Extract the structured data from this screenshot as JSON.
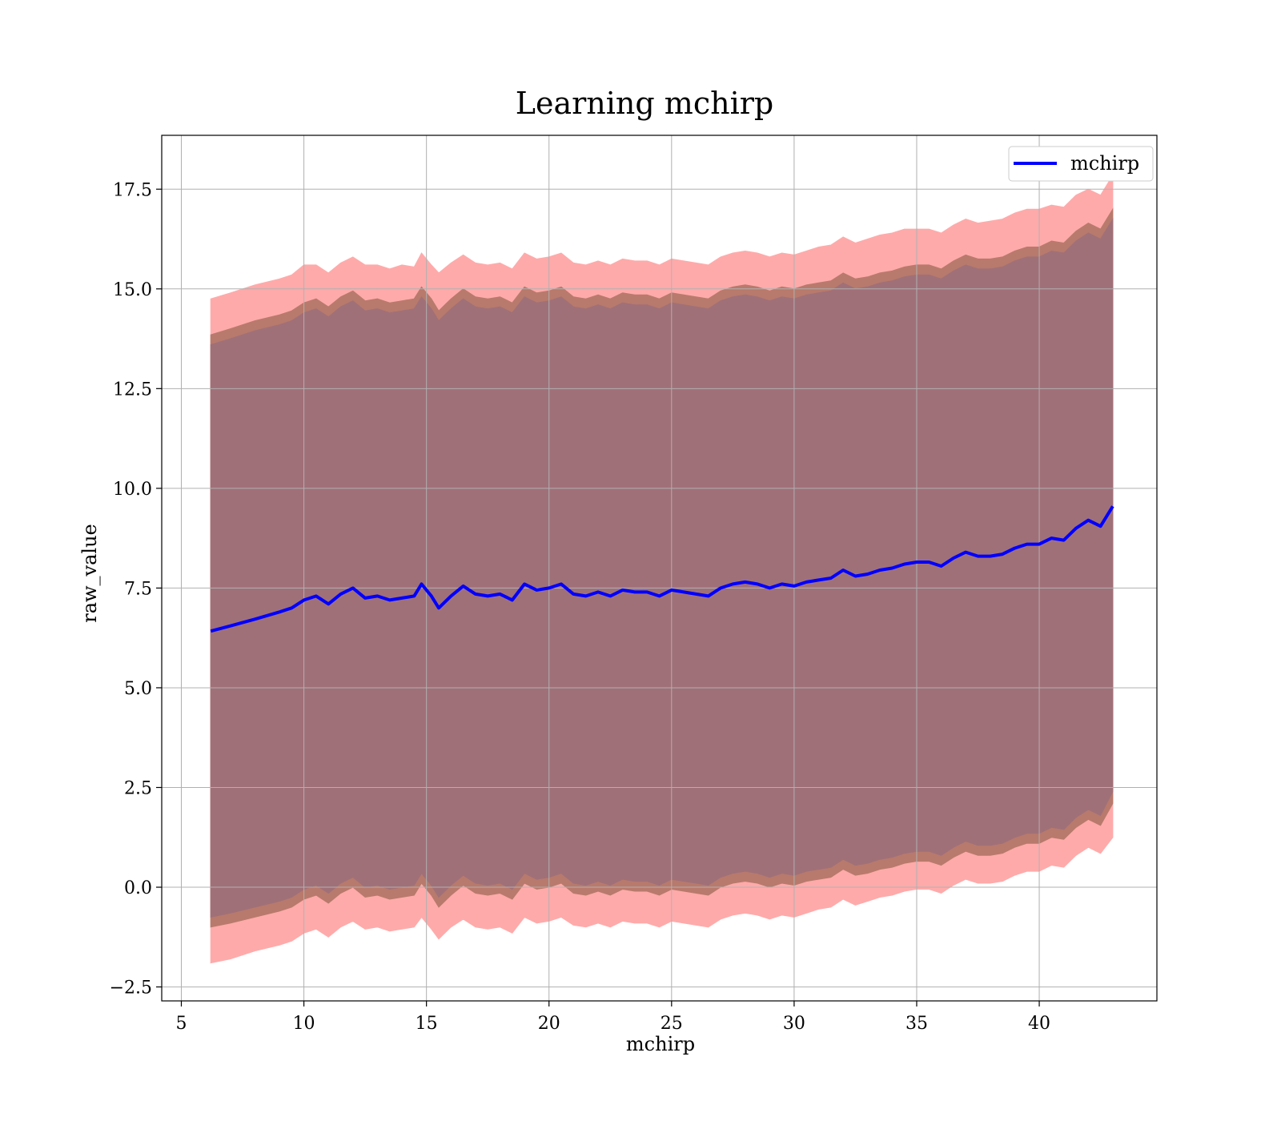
{
  "chart_data": {
    "type": "area",
    "title": "Learning mchirp",
    "xlabel": "mchirp",
    "ylabel": "raw_value",
    "xlim": [
      4.2,
      44.8
    ],
    "ylim": [
      -2.85,
      18.85
    ],
    "xticks": [
      5,
      10,
      15,
      20,
      25,
      30,
      35,
      40
    ],
    "xtick_labels": [
      "5",
      "10",
      "15",
      "20",
      "25",
      "30",
      "35",
      "40"
    ],
    "yticks": [
      -2.5,
      0.0,
      2.5,
      5.0,
      7.5,
      10.0,
      12.5,
      15.0,
      17.5
    ],
    "ytick_labels": [
      "−2.5",
      "0.0",
      "2.5",
      "5.0",
      "7.5",
      "10.0",
      "12.5",
      "15.0",
      "17.5"
    ],
    "grid": true,
    "legend": {
      "position": "top-right",
      "entries": [
        "mchirp"
      ]
    },
    "series": [
      {
        "name": "mchirp",
        "color": "#0000ff",
        "x": [
          6.2,
          7,
          8,
          9,
          9.5,
          10,
          10.5,
          11,
          11.5,
          12,
          12.5,
          13,
          13.5,
          14,
          14.5,
          14.8,
          15.2,
          15.5,
          16,
          16.5,
          17,
          17.5,
          18,
          18.5,
          19,
          19.5,
          20,
          20.5,
          21,
          21.5,
          22,
          22.5,
          23,
          23.5,
          24,
          24.5,
          25,
          25.5,
          26,
          26.5,
          27,
          27.5,
          28,
          28.5,
          29,
          29.5,
          30,
          30.5,
          31,
          31.5,
          32,
          32.5,
          33,
          33.5,
          34,
          34.5,
          35,
          35.5,
          36,
          36.5,
          37,
          37.5,
          38,
          38.5,
          39,
          39.5,
          40,
          40.5,
          41,
          41.5,
          42,
          42.5,
          43
        ],
        "values": [
          6.42,
          6.55,
          6.72,
          6.9,
          7.0,
          7.2,
          7.3,
          7.1,
          7.35,
          7.5,
          7.25,
          7.3,
          7.2,
          7.25,
          7.3,
          7.6,
          7.3,
          7.0,
          7.3,
          7.55,
          7.35,
          7.3,
          7.35,
          7.2,
          7.6,
          7.45,
          7.5,
          7.6,
          7.35,
          7.3,
          7.4,
          7.3,
          7.45,
          7.4,
          7.4,
          7.3,
          7.45,
          7.4,
          7.35,
          7.3,
          7.5,
          7.6,
          7.65,
          7.6,
          7.5,
          7.6,
          7.55,
          7.65,
          7.7,
          7.75,
          7.95,
          7.8,
          7.85,
          7.95,
          8.0,
          8.1,
          8.15,
          8.15,
          8.05,
          8.25,
          8.4,
          8.3,
          8.3,
          8.35,
          8.5,
          8.6,
          8.6,
          8.75,
          8.7,
          9.0,
          9.2,
          9.05,
          9.55
        ]
      }
    ],
    "bands": [
      {
        "color": "#ffaaaa",
        "x": [
          6.2,
          7,
          8,
          9,
          9.5,
          10,
          10.5,
          11,
          11.5,
          12,
          12.5,
          13,
          13.5,
          14,
          14.5,
          14.8,
          15.2,
          15.5,
          16,
          16.5,
          17,
          17.5,
          18,
          18.5,
          19,
          19.5,
          20,
          20.5,
          21,
          21.5,
          22,
          22.5,
          23,
          23.5,
          24,
          24.5,
          25,
          25.5,
          26,
          26.5,
          27,
          27.5,
          28,
          28.5,
          29,
          29.5,
          30,
          30.5,
          31,
          31.5,
          32,
          32.5,
          33,
          33.5,
          34,
          34.5,
          35,
          35.5,
          36,
          36.5,
          37,
          37.5,
          38,
          38.5,
          39,
          39.5,
          40,
          40.5,
          41,
          41.5,
          42,
          42.5,
          43
        ],
        "upper": [
          14.75,
          14.9,
          15.1,
          15.25,
          15.35,
          15.6,
          15.6,
          15.4,
          15.65,
          15.8,
          15.6,
          15.6,
          15.5,
          15.6,
          15.55,
          15.9,
          15.6,
          15.4,
          15.65,
          15.85,
          15.65,
          15.6,
          15.65,
          15.5,
          15.9,
          15.75,
          15.8,
          15.9,
          15.65,
          15.6,
          15.7,
          15.6,
          15.75,
          15.7,
          15.7,
          15.6,
          15.75,
          15.7,
          15.65,
          15.6,
          15.8,
          15.9,
          15.95,
          15.9,
          15.8,
          15.9,
          15.85,
          15.95,
          16.05,
          16.1,
          16.3,
          16.15,
          16.25,
          16.35,
          16.4,
          16.5,
          16.5,
          16.5,
          16.4,
          16.6,
          16.75,
          16.65,
          16.7,
          16.75,
          16.9,
          17.0,
          17.0,
          17.1,
          17.05,
          17.35,
          17.5,
          17.35,
          17.85
        ],
        "lower": [
          -1.9,
          -1.8,
          -1.6,
          -1.45,
          -1.35,
          -1.15,
          -1.05,
          -1.25,
          -1.0,
          -0.85,
          -1.05,
          -1.0,
          -1.1,
          -1.05,
          -1.0,
          -0.75,
          -1.05,
          -1.3,
          -1.0,
          -0.8,
          -1.0,
          -1.05,
          -1.0,
          -1.15,
          -0.75,
          -0.9,
          -0.85,
          -0.75,
          -0.95,
          -1.0,
          -0.9,
          -1.0,
          -0.85,
          -0.9,
          -0.9,
          -1.0,
          -0.85,
          -0.9,
          -0.95,
          -1.0,
          -0.8,
          -0.7,
          -0.65,
          -0.7,
          -0.8,
          -0.7,
          -0.75,
          -0.65,
          -0.55,
          -0.5,
          -0.3,
          -0.45,
          -0.35,
          -0.25,
          -0.2,
          -0.1,
          -0.05,
          -0.05,
          -0.15,
          0.05,
          0.2,
          0.1,
          0.1,
          0.15,
          0.3,
          0.4,
          0.4,
          0.55,
          0.5,
          0.8,
          1.0,
          0.85,
          1.25
        ]
      },
      {
        "color": "#b87a6c",
        "x": [
          6.2,
          7,
          8,
          9,
          9.5,
          10,
          10.5,
          11,
          11.5,
          12,
          12.5,
          13,
          13.5,
          14,
          14.5,
          14.8,
          15.2,
          15.5,
          16,
          16.5,
          17,
          17.5,
          18,
          18.5,
          19,
          19.5,
          20,
          20.5,
          21,
          21.5,
          22,
          22.5,
          23,
          23.5,
          24,
          24.5,
          25,
          25.5,
          26,
          26.5,
          27,
          27.5,
          28,
          28.5,
          29,
          29.5,
          30,
          30.5,
          31,
          31.5,
          32,
          32.5,
          33,
          33.5,
          34,
          34.5,
          35,
          35.5,
          36,
          36.5,
          37,
          37.5,
          38,
          38.5,
          39,
          39.5,
          40,
          40.5,
          41,
          41.5,
          42,
          42.5,
          43
        ],
        "upper": [
          13.85,
          14.0,
          14.2,
          14.35,
          14.45,
          14.65,
          14.75,
          14.55,
          14.8,
          14.95,
          14.7,
          14.75,
          14.65,
          14.7,
          14.75,
          15.05,
          14.75,
          14.45,
          14.75,
          15.0,
          14.8,
          14.75,
          14.8,
          14.65,
          15.05,
          14.9,
          14.95,
          15.05,
          14.8,
          14.75,
          14.85,
          14.75,
          14.9,
          14.85,
          14.85,
          14.75,
          14.9,
          14.85,
          14.8,
          14.75,
          14.95,
          15.05,
          15.1,
          15.05,
          14.95,
          15.05,
          15.0,
          15.1,
          15.15,
          15.2,
          15.4,
          15.25,
          15.3,
          15.4,
          15.45,
          15.55,
          15.6,
          15.6,
          15.5,
          15.7,
          15.85,
          15.75,
          15.75,
          15.8,
          15.95,
          16.05,
          16.05,
          16.2,
          16.15,
          16.45,
          16.65,
          16.5,
          17.0
        ],
        "lower": [
          -1.0,
          -0.9,
          -0.75,
          -0.6,
          -0.5,
          -0.3,
          -0.2,
          -0.4,
          -0.15,
          0.0,
          -0.25,
          -0.2,
          -0.3,
          -0.25,
          -0.2,
          0.1,
          -0.2,
          -0.5,
          -0.2,
          0.05,
          -0.15,
          -0.2,
          -0.15,
          -0.3,
          0.1,
          -0.05,
          0.0,
          0.1,
          -0.15,
          -0.2,
          -0.1,
          -0.2,
          -0.05,
          -0.1,
          -0.1,
          -0.2,
          -0.05,
          -0.1,
          -0.15,
          -0.2,
          0.0,
          0.1,
          0.15,
          0.1,
          0.0,
          0.1,
          0.05,
          0.15,
          0.2,
          0.25,
          0.45,
          0.3,
          0.35,
          0.45,
          0.5,
          0.6,
          0.65,
          0.65,
          0.55,
          0.75,
          0.9,
          0.8,
          0.8,
          0.85,
          1.0,
          1.1,
          1.1,
          1.25,
          1.2,
          1.5,
          1.7,
          1.55,
          2.1
        ]
      },
      {
        "color": "#a07078",
        "x": [
          6.2,
          7,
          8,
          9,
          9.5,
          10,
          10.5,
          11,
          11.5,
          12,
          12.5,
          13,
          13.5,
          14,
          14.5,
          14.8,
          15.2,
          15.5,
          16,
          16.5,
          17,
          17.5,
          18,
          18.5,
          19,
          19.5,
          20,
          20.5,
          21,
          21.5,
          22,
          22.5,
          23,
          23.5,
          24,
          24.5,
          25,
          25.5,
          26,
          26.5,
          27,
          27.5,
          28,
          28.5,
          29,
          29.5,
          30,
          30.5,
          31,
          31.5,
          32,
          32.5,
          33,
          33.5,
          34,
          34.5,
          35,
          35.5,
          36,
          36.5,
          37,
          37.5,
          38,
          38.5,
          39,
          39.5,
          40,
          40.5,
          41,
          41.5,
          42,
          42.5,
          43
        ],
        "upper": [
          13.6,
          13.75,
          13.95,
          14.1,
          14.2,
          14.4,
          14.5,
          14.3,
          14.55,
          14.7,
          14.45,
          14.5,
          14.4,
          14.45,
          14.5,
          14.8,
          14.5,
          14.2,
          14.5,
          14.75,
          14.55,
          14.5,
          14.55,
          14.4,
          14.8,
          14.65,
          14.7,
          14.8,
          14.55,
          14.5,
          14.6,
          14.5,
          14.65,
          14.6,
          14.6,
          14.5,
          14.65,
          14.6,
          14.55,
          14.5,
          14.7,
          14.8,
          14.85,
          14.8,
          14.7,
          14.8,
          14.75,
          14.85,
          14.9,
          14.95,
          15.15,
          15.0,
          15.05,
          15.15,
          15.2,
          15.3,
          15.35,
          15.35,
          15.25,
          15.45,
          15.6,
          15.5,
          15.5,
          15.55,
          15.7,
          15.8,
          15.8,
          15.95,
          15.9,
          16.2,
          16.4,
          16.25,
          16.75
        ],
        "lower": [
          -0.75,
          -0.65,
          -0.5,
          -0.35,
          -0.25,
          -0.05,
          0.05,
          -0.15,
          0.1,
          0.25,
          0.0,
          0.05,
          -0.05,
          0.0,
          0.05,
          0.35,
          0.05,
          -0.25,
          0.05,
          0.3,
          0.1,
          0.05,
          0.1,
          -0.05,
          0.35,
          0.2,
          0.25,
          0.35,
          0.1,
          0.05,
          0.15,
          0.05,
          0.2,
          0.15,
          0.15,
          0.05,
          0.2,
          0.15,
          0.1,
          0.05,
          0.25,
          0.35,
          0.4,
          0.35,
          0.25,
          0.35,
          0.3,
          0.4,
          0.45,
          0.5,
          0.7,
          0.55,
          0.6,
          0.7,
          0.75,
          0.85,
          0.9,
          0.9,
          0.8,
          1.0,
          1.15,
          1.05,
          1.05,
          1.1,
          1.25,
          1.35,
          1.35,
          1.5,
          1.45,
          1.75,
          1.95,
          1.8,
          2.4
        ]
      }
    ]
  }
}
